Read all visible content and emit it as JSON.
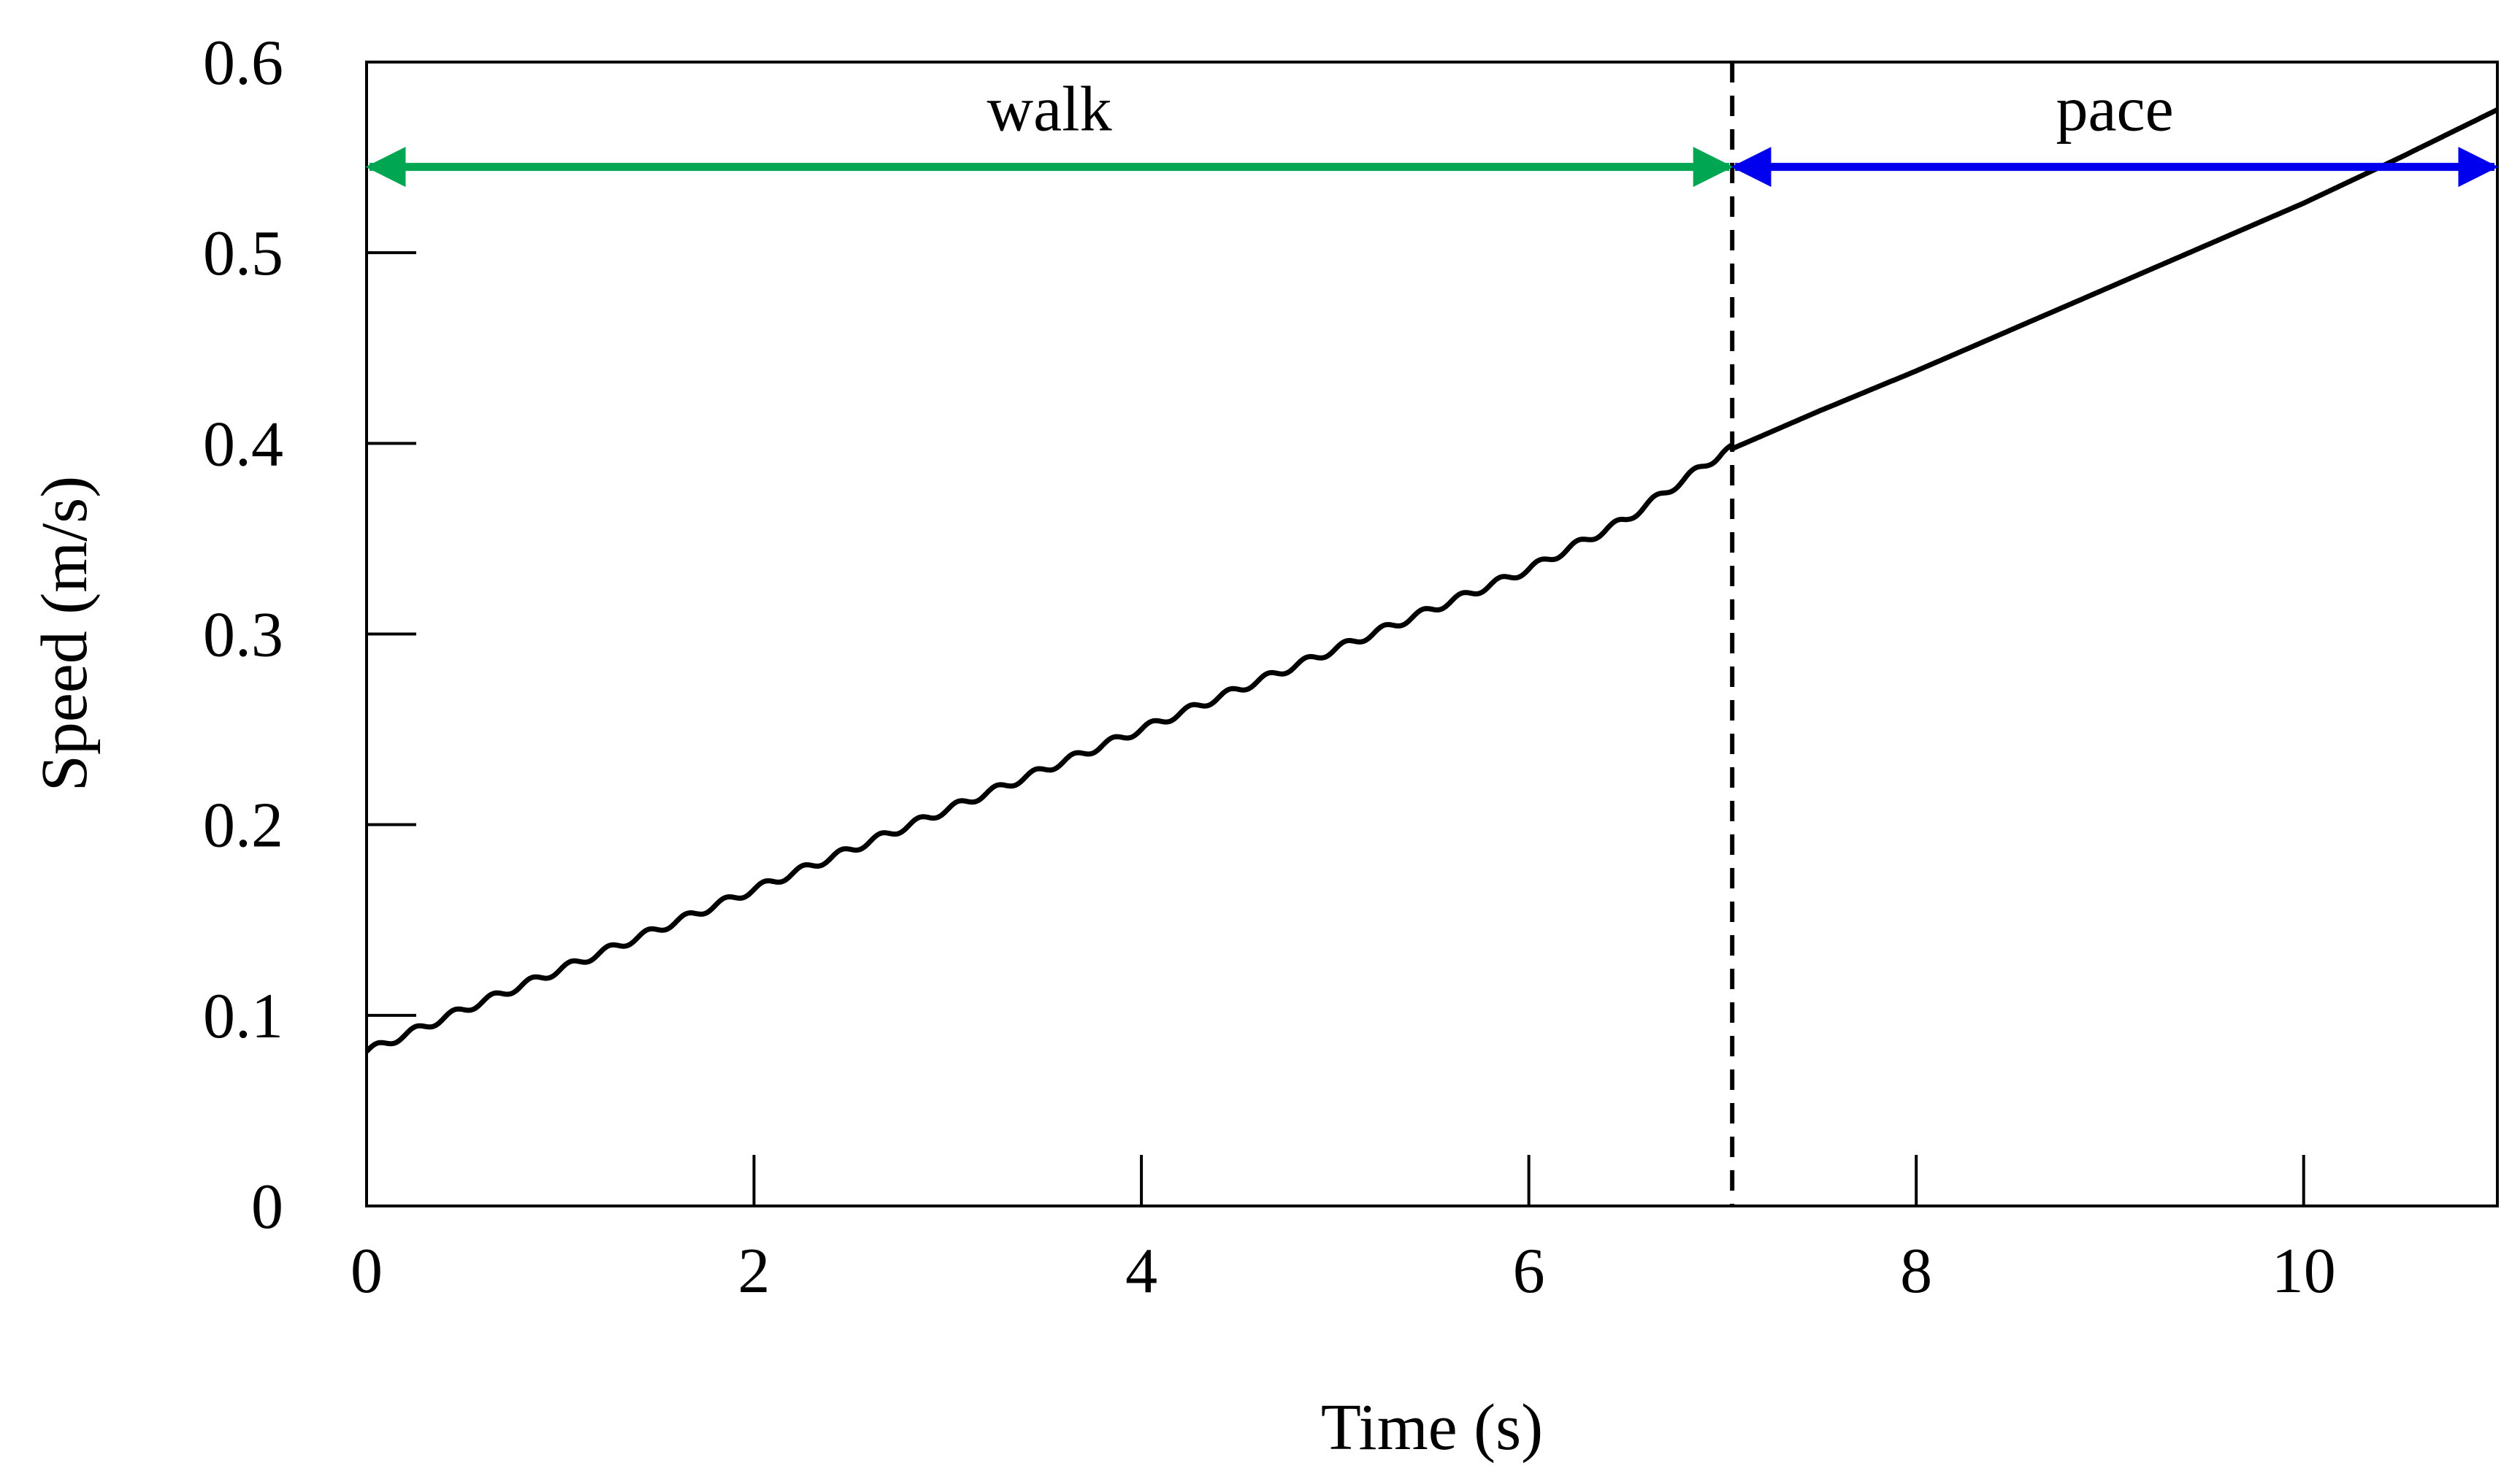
{
  "chart_data": {
    "type": "line",
    "title": "",
    "xlabel": "Time (s)",
    "ylabel": "Speed (m/s)",
    "xlim": [
      0,
      11
    ],
    "ylim": [
      0,
      0.6
    ],
    "xticks": [
      0,
      2,
      4,
      6,
      8,
      10
    ],
    "xtick_labels": [
      "0",
      "2",
      "4",
      "6",
      "8",
      "10"
    ],
    "yticks": [
      0,
      0.1,
      0.2,
      0.3,
      0.4,
      0.5,
      0.6
    ],
    "ytick_labels": [
      "0",
      "0.1",
      "0.2",
      "0.3",
      "0.4",
      "0.5",
      "0.6"
    ],
    "grid": false,
    "series": [
      {
        "color": "#000000",
        "x": [
          0,
          0.5,
          1,
          1.5,
          2,
          2.5,
          3,
          3.5,
          4,
          4.5,
          5,
          5.5,
          6,
          6.5,
          7,
          7.5,
          8,
          8.5,
          9,
          9.5,
          10,
          10.5,
          11
        ],
        "y": [
          0.081,
          0.103,
          0.124,
          0.145,
          0.166,
          0.187,
          0.208,
          0.229,
          0.25,
          0.271,
          0.292,
          0.313,
          0.334,
          0.36,
          0.395,
          0.417,
          0.438,
          0.46,
          0.482,
          0.504,
          0.526,
          0.55,
          0.575
        ]
      }
    ],
    "annotations": [
      {
        "type": "vline",
        "x": 7.05,
        "style": "dashed",
        "color": "#000000"
      },
      {
        "type": "double-arrow",
        "label": "walk",
        "x_start": 0,
        "x_end": 7.05,
        "y": 0.545,
        "color": "#00a651"
      },
      {
        "type": "double-arrow",
        "label": "pace",
        "x_start": 7.05,
        "x_end": 11,
        "y": 0.545,
        "color": "#0000ee"
      }
    ]
  }
}
